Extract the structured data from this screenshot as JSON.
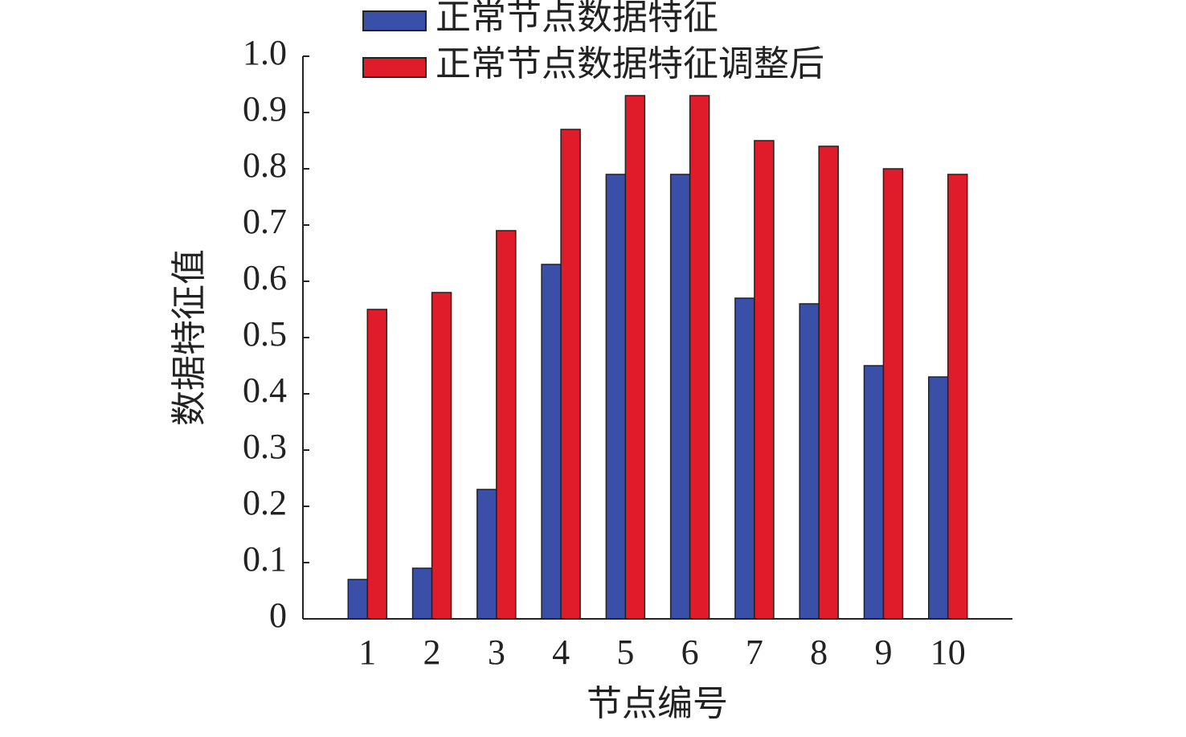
{
  "chart_data": {
    "type": "bar",
    "x_label": "节点编号",
    "y_label": "数据特征值",
    "categories": [
      "1",
      "2",
      "3",
      "4",
      "5",
      "6",
      "7",
      "8",
      "9",
      "10"
    ],
    "series": [
      {
        "name": "正常节点数据特征",
        "color": "#3a4fa8",
        "values": [
          0.07,
          0.09,
          0.23,
          0.63,
          0.79,
          0.79,
          0.57,
          0.56,
          0.45,
          0.43
        ]
      },
      {
        "name": "正常节点数据特征调整后",
        "color": "#e01b2a",
        "values": [
          0.55,
          0.58,
          0.69,
          0.87,
          0.93,
          0.93,
          0.85,
          0.84,
          0.8,
          0.79
        ]
      }
    ],
    "ylim": [
      0,
      1
    ],
    "yticks": [
      0,
      0.1,
      0.2,
      0.3,
      0.4,
      0.5,
      0.6,
      0.7,
      0.8,
      0.9,
      {
        "value": 1,
        "label": "1.0"
      }
    ]
  }
}
